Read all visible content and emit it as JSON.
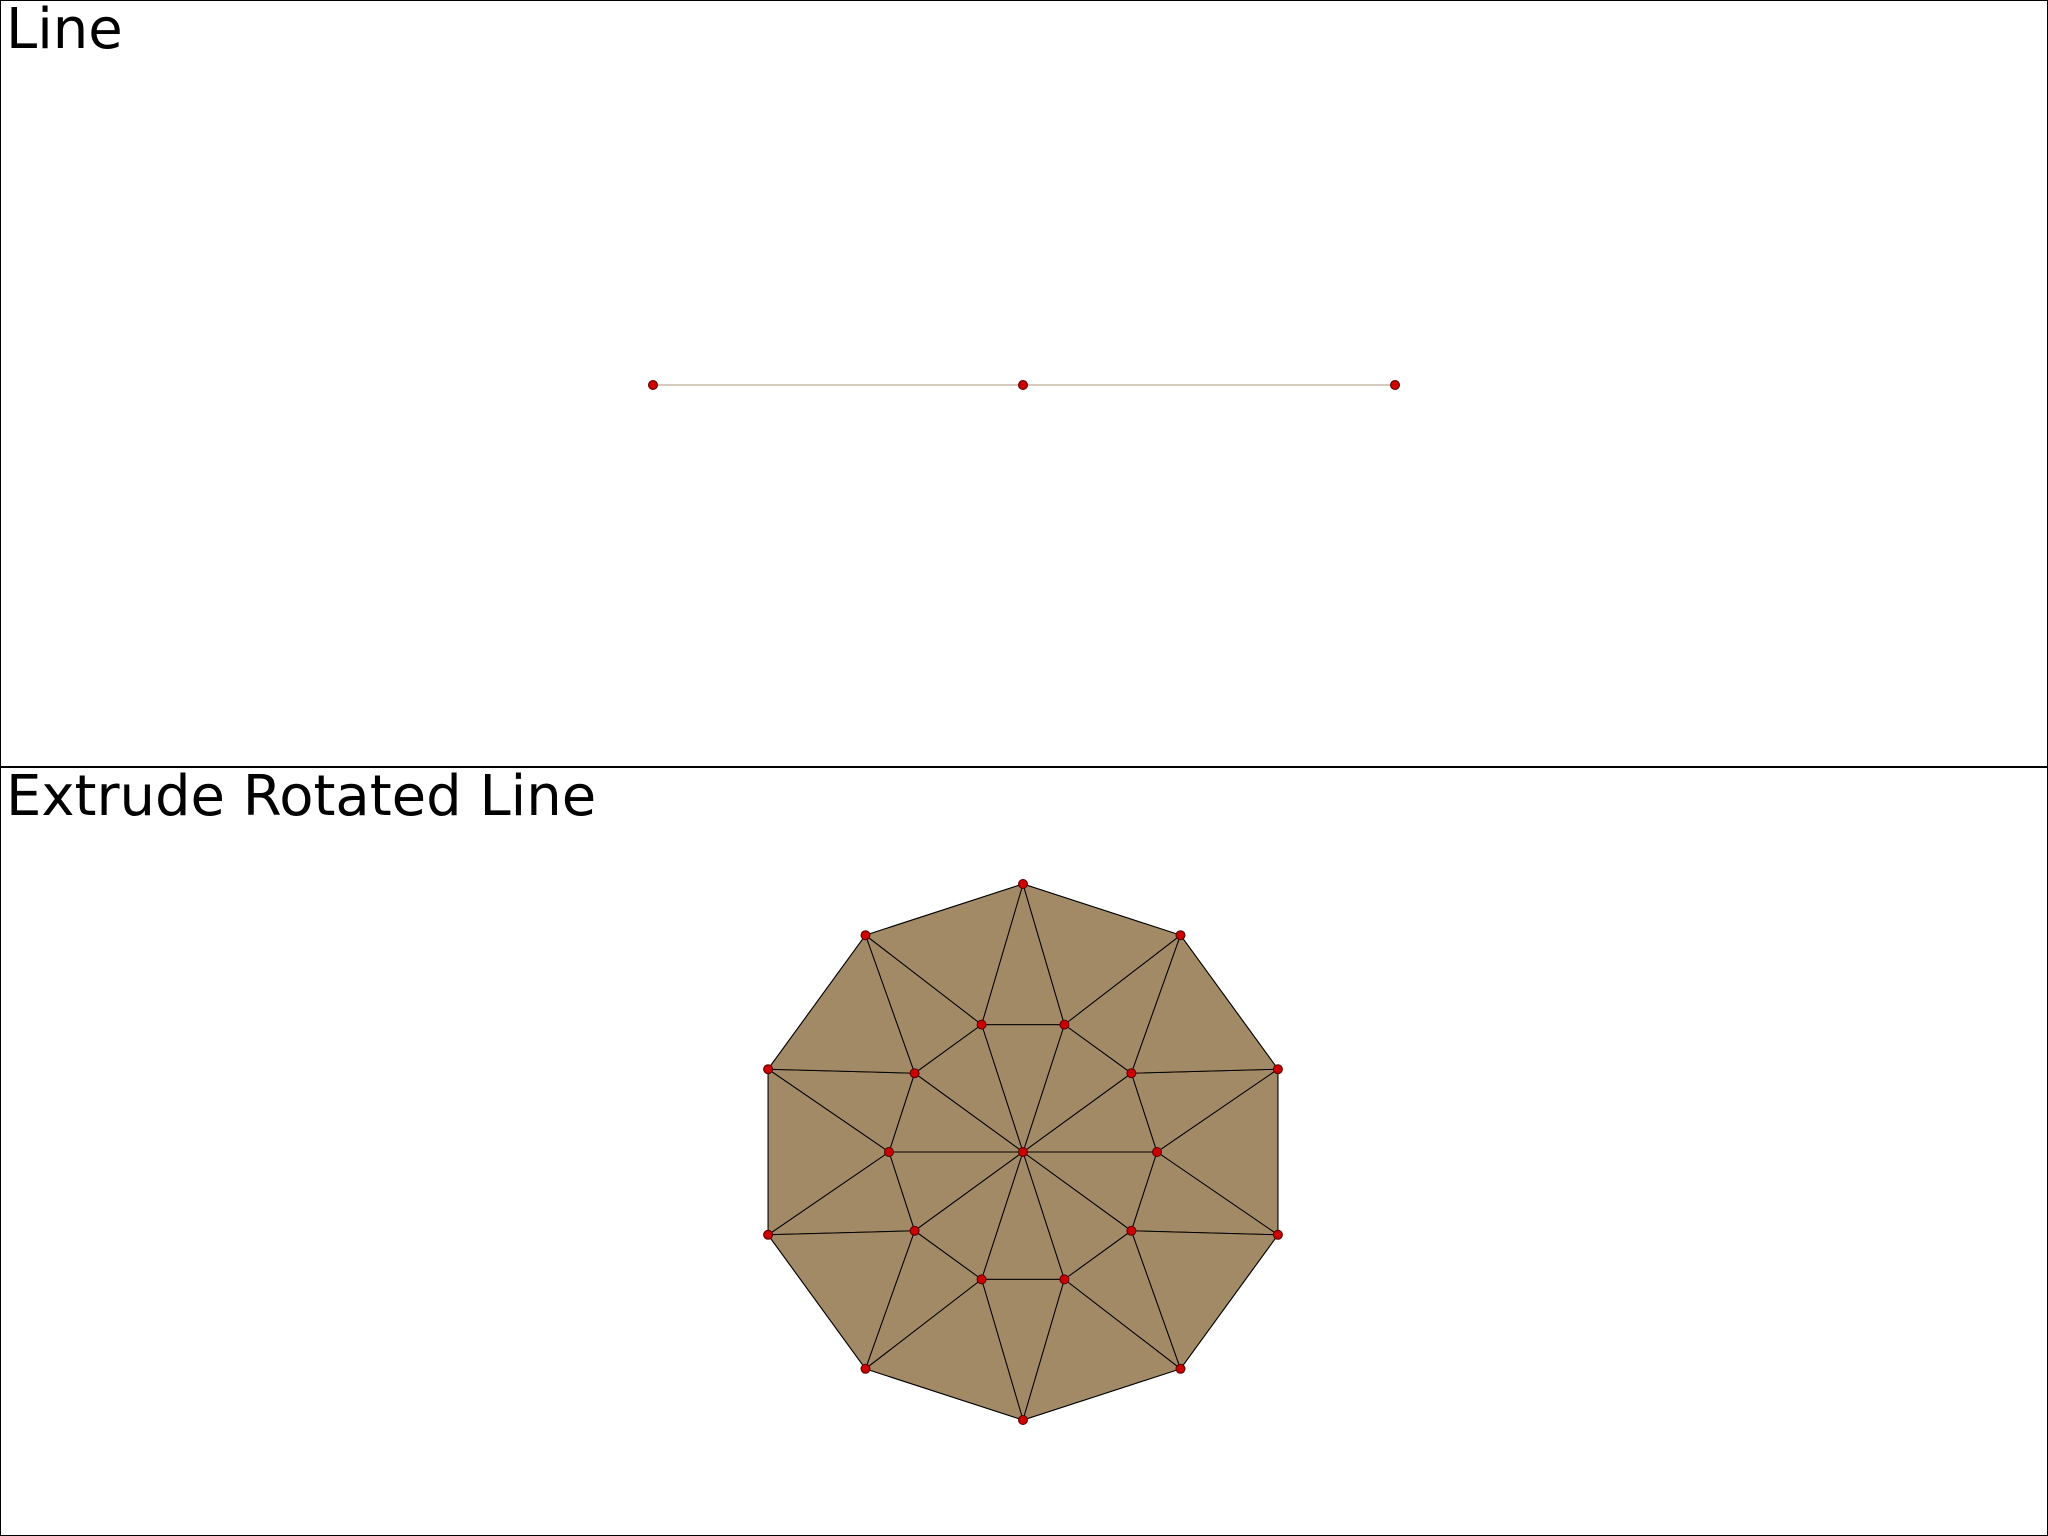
{
  "panels": {
    "top": {
      "title": "Line"
    },
    "bottom": {
      "title": "Extrude Rotated Line"
    }
  },
  "colors": {
    "mesh_fill": "#a38a67",
    "mesh_edge": "#000000",
    "line_stroke": "#c7b9a5",
    "point": "#cc0000",
    "point_stroke": "#550000",
    "background": "#ffffff",
    "border": "#000000"
  }
}
